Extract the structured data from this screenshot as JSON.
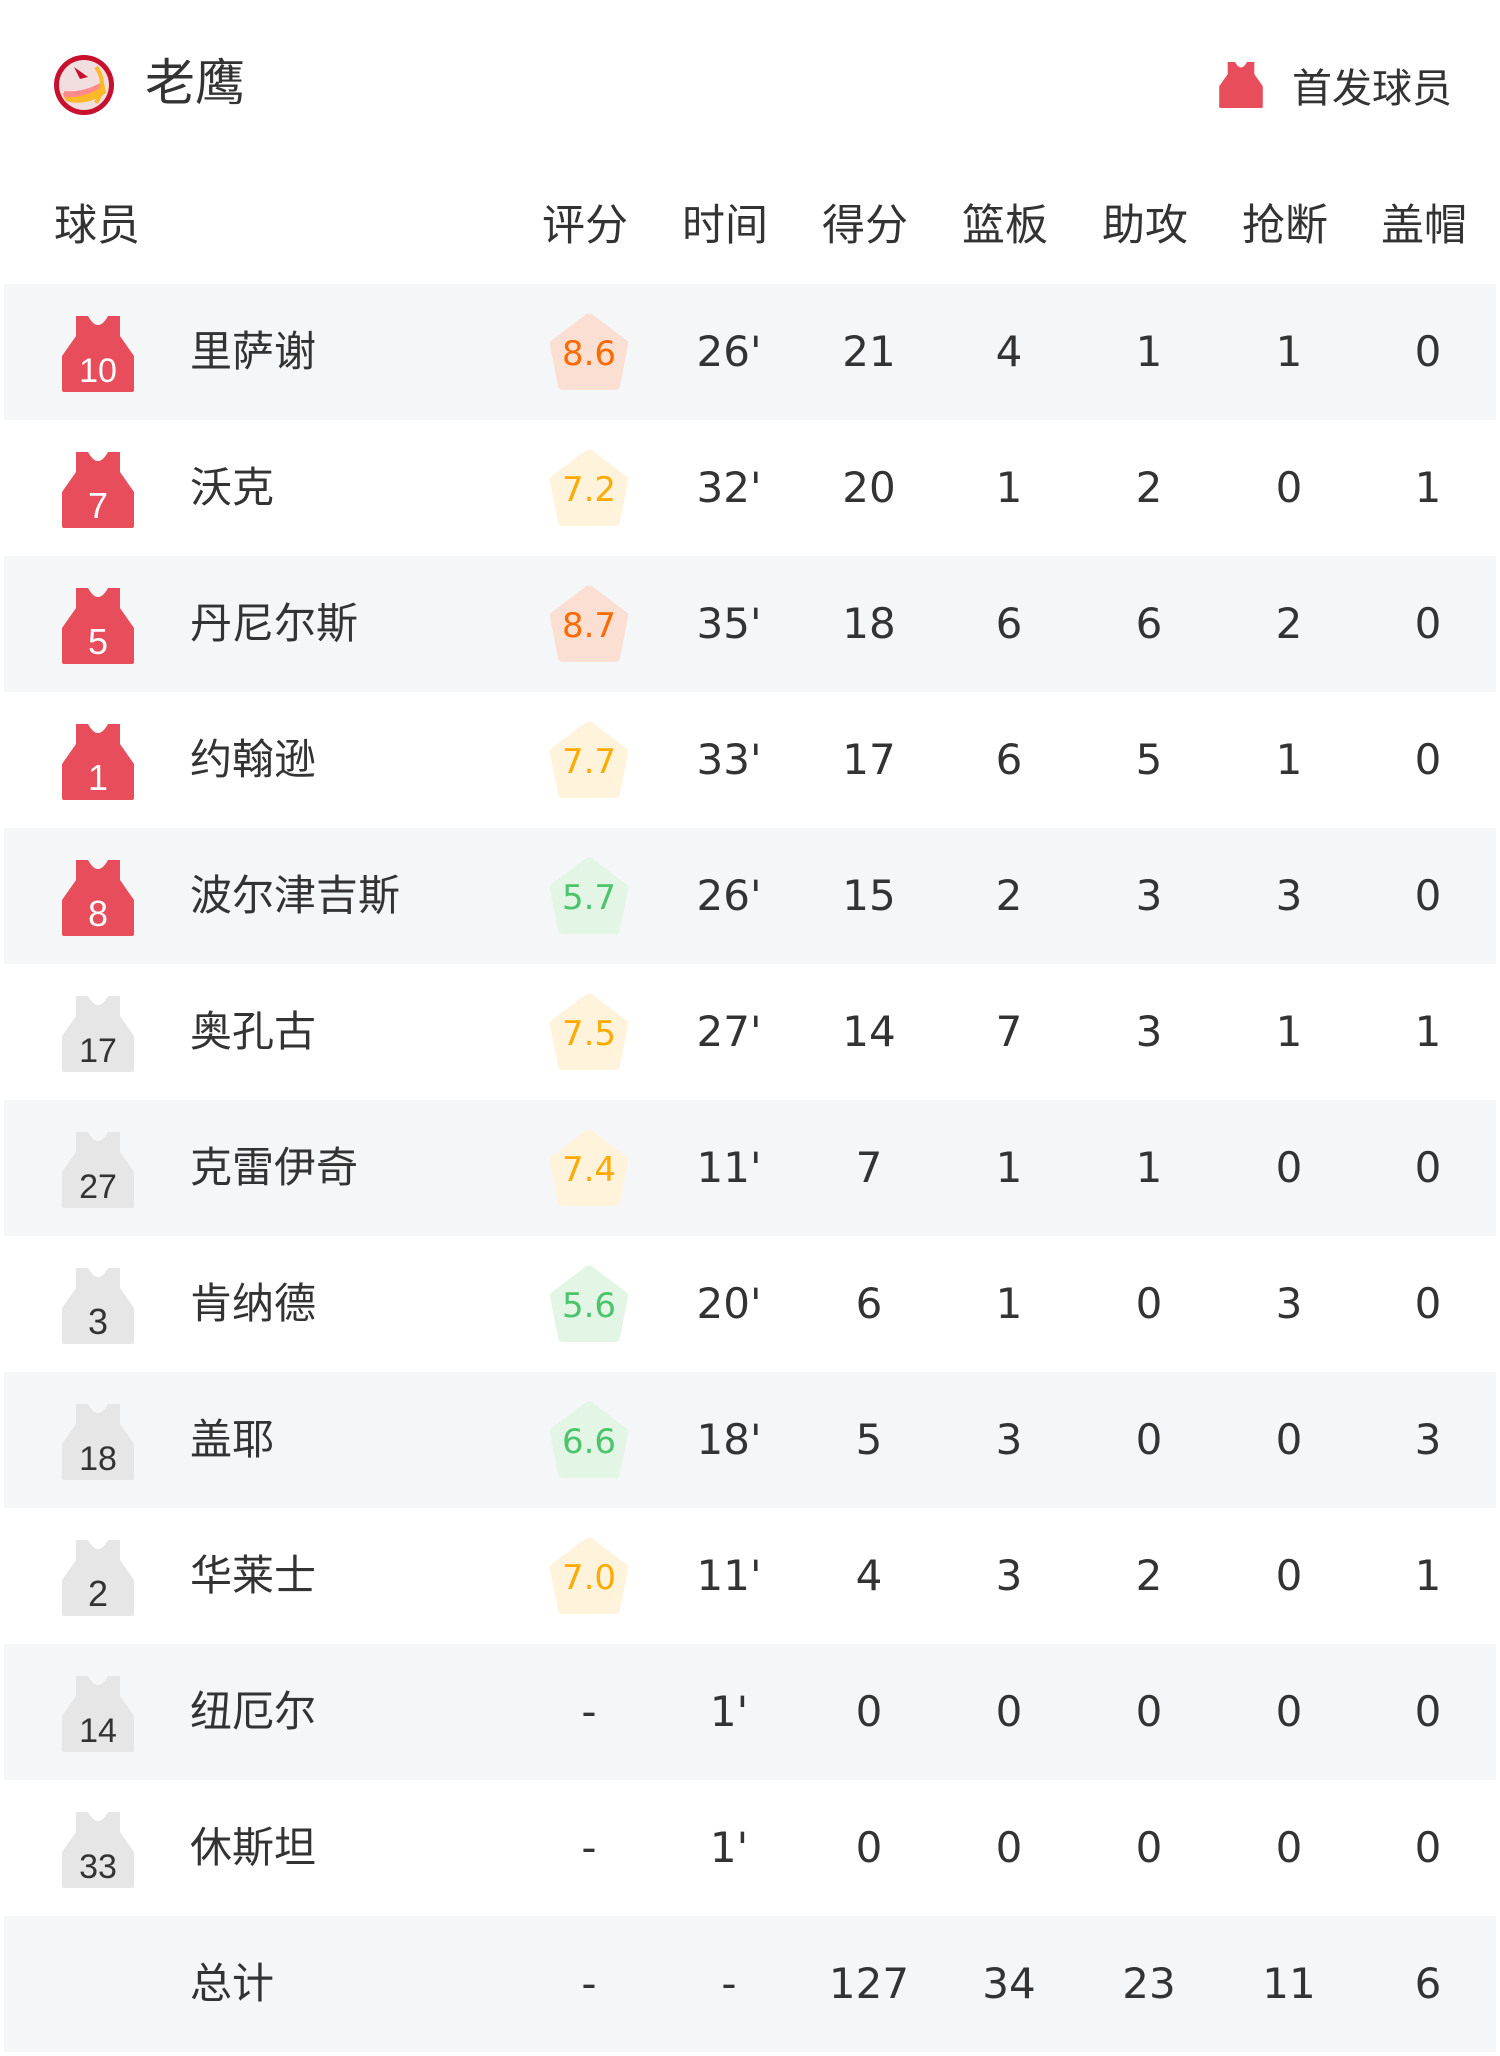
{
  "team": {
    "name": "老鹰",
    "logo_icon": "hawks-logo"
  },
  "legend": {
    "label": "首发球员",
    "starter_color": "#e84d5b",
    "bench_color": "#e6e6e6"
  },
  "columns": [
    "球员",
    "评分",
    "时间",
    "得分",
    "篮板",
    "助攻",
    "抢断",
    "盖帽"
  ],
  "rating_colors": {
    "high": {
      "text": "#ff6a00",
      "bg": "#fbdfd2"
    },
    "mid": {
      "text": "#ffaa00",
      "bg": "#fff3dc"
    },
    "low": {
      "text": "#4cc46c",
      "bg": "#e3f5e5"
    }
  },
  "players": [
    {
      "number": "10",
      "name": "里萨谢",
      "starter": true,
      "rating": "8.6",
      "time": "26'",
      "pts": "21",
      "reb": "4",
      "ast": "1",
      "stl": "1",
      "blk": "0"
    },
    {
      "number": "7",
      "name": "沃克",
      "starter": true,
      "rating": "7.2",
      "time": "32'",
      "pts": "20",
      "reb": "1",
      "ast": "2",
      "stl": "0",
      "blk": "1"
    },
    {
      "number": "5",
      "name": "丹尼尔斯",
      "starter": true,
      "rating": "8.7",
      "time": "35'",
      "pts": "18",
      "reb": "6",
      "ast": "6",
      "stl": "2",
      "blk": "0"
    },
    {
      "number": "1",
      "name": "约翰逊",
      "starter": true,
      "rating": "7.7",
      "time": "33'",
      "pts": "17",
      "reb": "6",
      "ast": "5",
      "stl": "1",
      "blk": "0"
    },
    {
      "number": "8",
      "name": "波尔津吉斯",
      "starter": true,
      "rating": "5.7",
      "time": "26'",
      "pts": "15",
      "reb": "2",
      "ast": "3",
      "stl": "3",
      "blk": "0"
    },
    {
      "number": "17",
      "name": "奥孔古",
      "starter": false,
      "rating": "7.5",
      "time": "27'",
      "pts": "14",
      "reb": "7",
      "ast": "3",
      "stl": "1",
      "blk": "1"
    },
    {
      "number": "27",
      "name": "克雷伊奇",
      "starter": false,
      "rating": "7.4",
      "time": "11'",
      "pts": "7",
      "reb": "1",
      "ast": "1",
      "stl": "0",
      "blk": "0"
    },
    {
      "number": "3",
      "name": "肯纳德",
      "starter": false,
      "rating": "5.6",
      "time": "20'",
      "pts": "6",
      "reb": "1",
      "ast": "0",
      "stl": "3",
      "blk": "0"
    },
    {
      "number": "18",
      "name": "盖耶",
      "starter": false,
      "rating": "6.6",
      "time": "18'",
      "pts": "5",
      "reb": "3",
      "ast": "0",
      "stl": "0",
      "blk": "3"
    },
    {
      "number": "2",
      "name": "华莱士",
      "starter": false,
      "rating": "7.0",
      "time": "11'",
      "pts": "4",
      "reb": "3",
      "ast": "2",
      "stl": "0",
      "blk": "1"
    },
    {
      "number": "14",
      "name": "纽厄尔",
      "starter": false,
      "rating": "-",
      "time": "1'",
      "pts": "0",
      "reb": "0",
      "ast": "0",
      "stl": "0",
      "blk": "0"
    },
    {
      "number": "33",
      "name": "休斯坦",
      "starter": false,
      "rating": "-",
      "time": "1'",
      "pts": "0",
      "reb": "0",
      "ast": "0",
      "stl": "0",
      "blk": "0"
    }
  ],
  "totals": {
    "label": "总计",
    "rating": "-",
    "time": "-",
    "pts": "127",
    "reb": "34",
    "ast": "23",
    "stl": "11",
    "blk": "6"
  }
}
